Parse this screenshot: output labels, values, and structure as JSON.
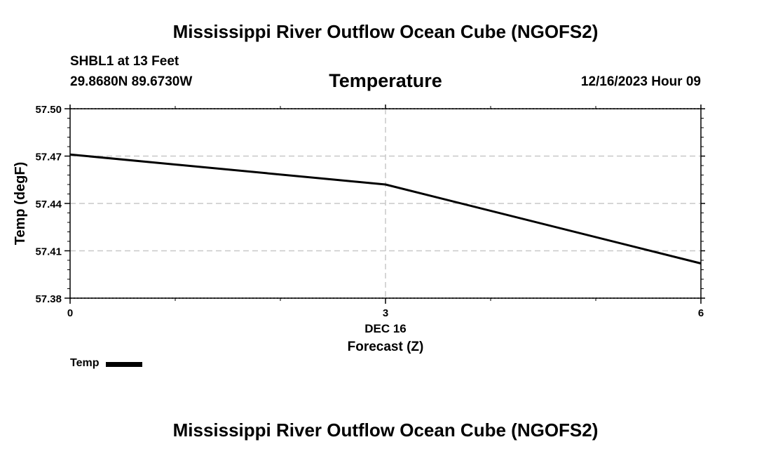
{
  "header": {
    "title": "Mississippi River Outflow Ocean Cube (NGOFS2)",
    "station": "SHBL1 at 13 Feet",
    "coords": "29.8680N  89.6730W",
    "variable": "Temperature",
    "datetime": "12/16/2023 Hour 09"
  },
  "footer": {
    "title": "Mississippi River Outflow Ocean Cube (NGOFS2)"
  },
  "chart_data": {
    "type": "line",
    "title": "Temperature",
    "xlabel": "Forecast (Z)",
    "ylabel": "Temp (degF)",
    "x_date_label": "DEC 16",
    "x": [
      0,
      3,
      6
    ],
    "xlim": [
      0,
      6
    ],
    "ylim": [
      57.38,
      57.5
    ],
    "yticks": [
      57.38,
      57.41,
      57.44,
      57.47,
      57.5
    ],
    "ytick_labels": [
      "57.38",
      "57.41",
      "57.44",
      "57.47",
      "57.50"
    ],
    "xticks": [
      0,
      3,
      6
    ],
    "xtick_labels": [
      "0",
      "3",
      "6"
    ],
    "grid": true,
    "series": [
      {
        "name": "Temp",
        "color": "#000000",
        "values": [
          57.471,
          57.452,
          57.402
        ]
      }
    ],
    "legend": "bottom-left"
  }
}
